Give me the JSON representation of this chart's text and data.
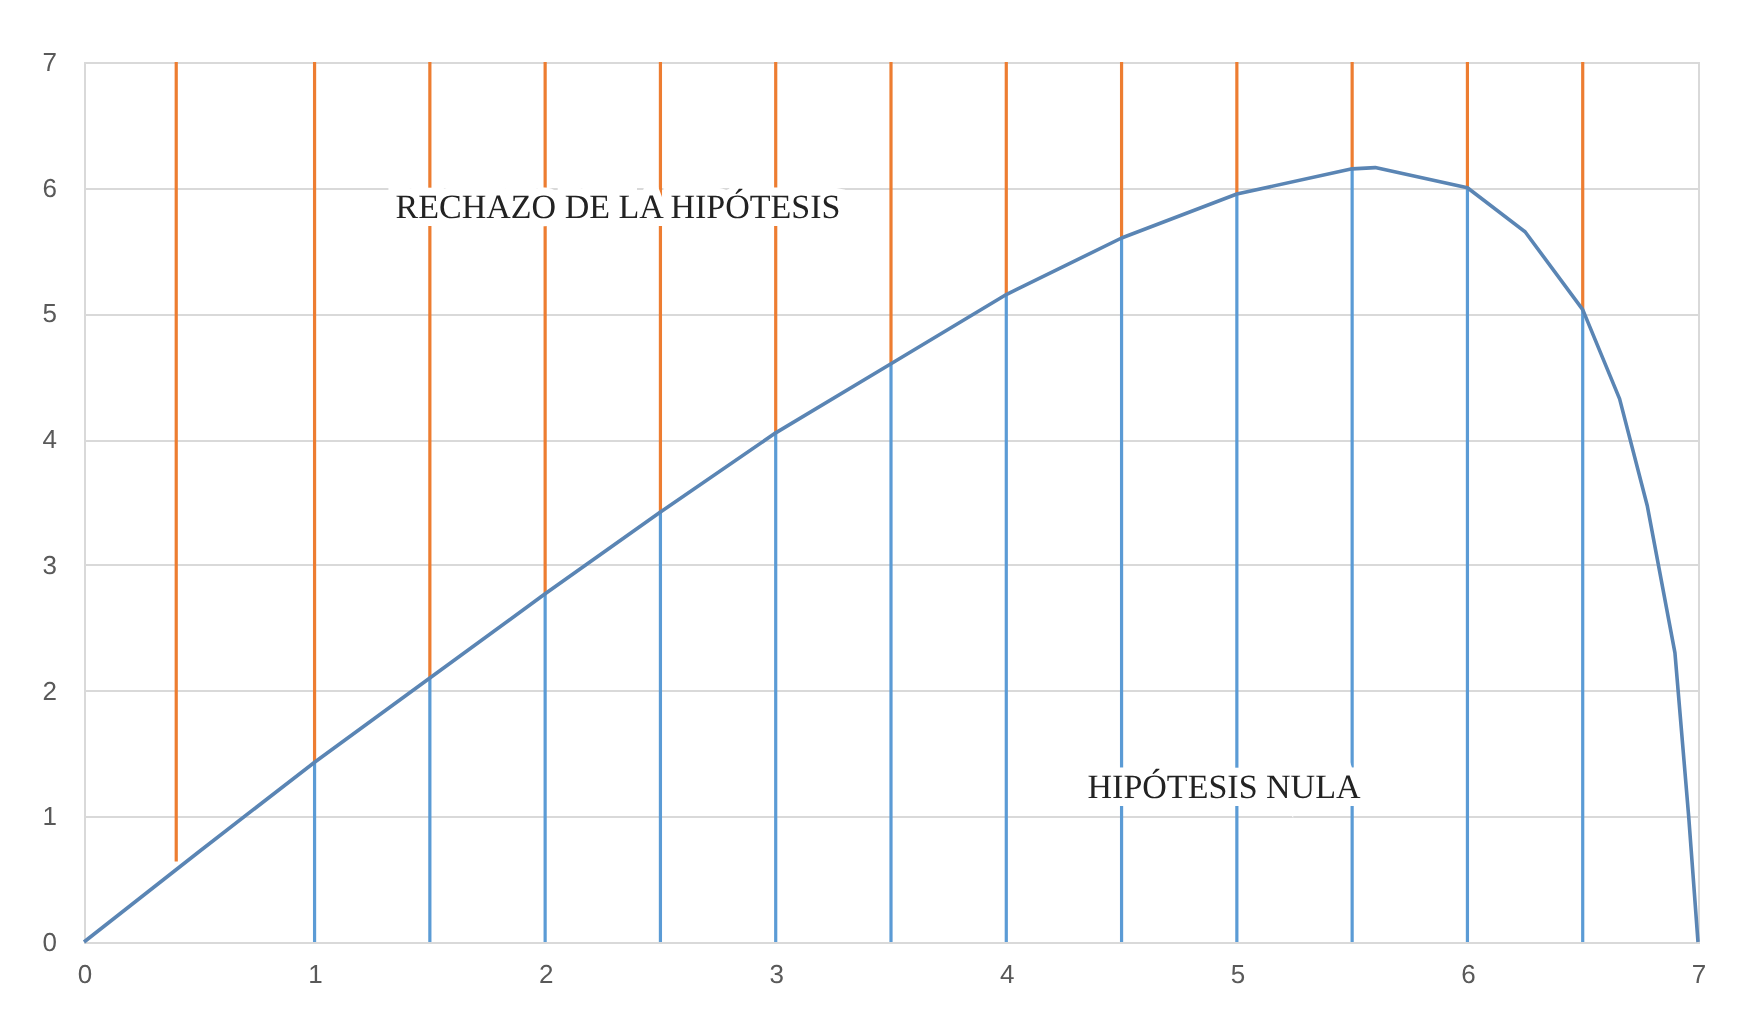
{
  "chart_data": {
    "type": "line",
    "series": [
      {
        "type": "bar",
        "color": "#5b9bd5",
        "x": [
          1,
          1.5,
          2,
          2.5,
          3,
          3.5,
          4,
          4.5,
          5,
          5.5,
          6,
          6.5
        ],
        "values": [
          1.43,
          2.1,
          2.77,
          3.42,
          4.05,
          4.6,
          5.15,
          5.6,
          5.95,
          6.15,
          6.0,
          5.03
        ]
      },
      {
        "type": "bar",
        "color": "#ed7d31",
        "x": [
          0.4,
          1,
          1.5,
          2,
          2.5,
          3,
          3.5,
          4,
          4.5,
          5,
          5.5,
          6,
          6.5
        ],
        "base": [
          0.64,
          1.43,
          2.1,
          2.77,
          3.42,
          4.05,
          4.6,
          5.15,
          5.6,
          5.95,
          6.15,
          6.0,
          5.03
        ],
        "values": [
          6.36,
          5.57,
          4.9,
          4.23,
          3.58,
          2.95,
          2.4,
          1.85,
          1.4,
          1.05,
          0.85,
          1.0,
          1.97
        ]
      },
      {
        "color": "#5a85b4",
        "x": [
          0,
          0.5,
          1,
          1.5,
          2,
          2.5,
          3,
          3.5,
          4,
          4.5,
          5,
          5.5,
          5.6,
          6,
          6.25,
          6.5,
          6.66,
          6.78,
          6.9,
          6.96,
          7
        ],
        "values": [
          0,
          0.72,
          1.43,
          2.1,
          2.77,
          3.42,
          4.05,
          4.6,
          5.15,
          5.6,
          5.95,
          6.15,
          6.16,
          6.0,
          5.65,
          5.03,
          4.32,
          3.47,
          2.3,
          0.99,
          0
        ]
      }
    ],
    "xlim": [
      0,
      7
    ],
    "xticks": [
      0,
      1,
      2,
      3,
      4,
      5,
      6,
      7
    ],
    "ylim": [
      0,
      7
    ],
    "yticks": [
      0,
      1,
      2,
      3,
      4,
      5,
      6,
      7
    ],
    "grid": "y",
    "annotations": [
      "RECHAZO DE LA HIPÓTESIS",
      "HIPÓTESIS NULA"
    ]
  }
}
